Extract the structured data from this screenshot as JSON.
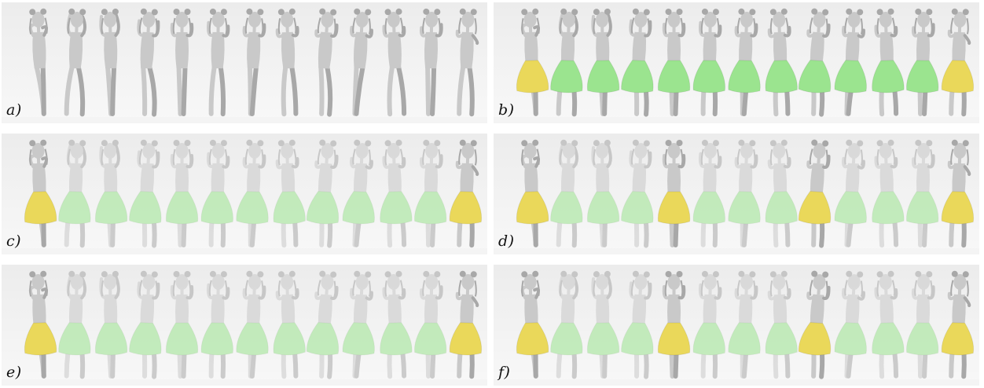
{
  "panels": [
    {
      "id": "a",
      "label": "a)",
      "figures": 13,
      "ghost": false,
      "skirts": []
    },
    {
      "id": "b",
      "label": "b)",
      "figures": 13,
      "ghost": false,
      "skirts": [
        "yellow",
        "green",
        "green",
        "green",
        "green",
        "green",
        "green",
        "green",
        "green",
        "green",
        "green",
        "green",
        "yellow"
      ]
    },
    {
      "id": "c",
      "label": "c)",
      "figures": 13,
      "ghost": true,
      "skirts": [
        "yellow",
        "green",
        "green",
        "green",
        "green",
        "green",
        "green",
        "green",
        "green",
        "green",
        "green",
        "green",
        "yellow"
      ],
      "solid": [
        0,
        12
      ]
    },
    {
      "id": "d",
      "label": "d)",
      "figures": 13,
      "ghost": true,
      "skirts": [
        "yellow",
        "green",
        "green",
        "green",
        "yellow",
        "green",
        "green",
        "green",
        "yellow",
        "green",
        "green",
        "green",
        "yellow"
      ],
      "solid": [
        0,
        4,
        8,
        12
      ]
    },
    {
      "id": "e",
      "label": "e)",
      "figures": 13,
      "ghost": true,
      "skirts": [
        "yellow",
        "green",
        "green",
        "green",
        "green",
        "green",
        "green",
        "green",
        "green",
        "green",
        "green",
        "green",
        "yellow"
      ],
      "solid": [
        0,
        12
      ]
    },
    {
      "id": "f",
      "label": "f)",
      "figures": 13,
      "ghost": true,
      "skirts": [
        "yellow",
        "green",
        "green",
        "green",
        "yellow",
        "green",
        "green",
        "green",
        "yellow",
        "green",
        "green",
        "green",
        "yellow"
      ],
      "solid": [
        0,
        4,
        8,
        12
      ]
    }
  ],
  "colors": {
    "background_top": "#ececec",
    "background_bottom": "#f8f8f8",
    "body": "#c9c9c9",
    "body_shadow": "#a8a8a8",
    "yellow_skirt": "#ead85a",
    "green_skirt": "#9be48f"
  }
}
